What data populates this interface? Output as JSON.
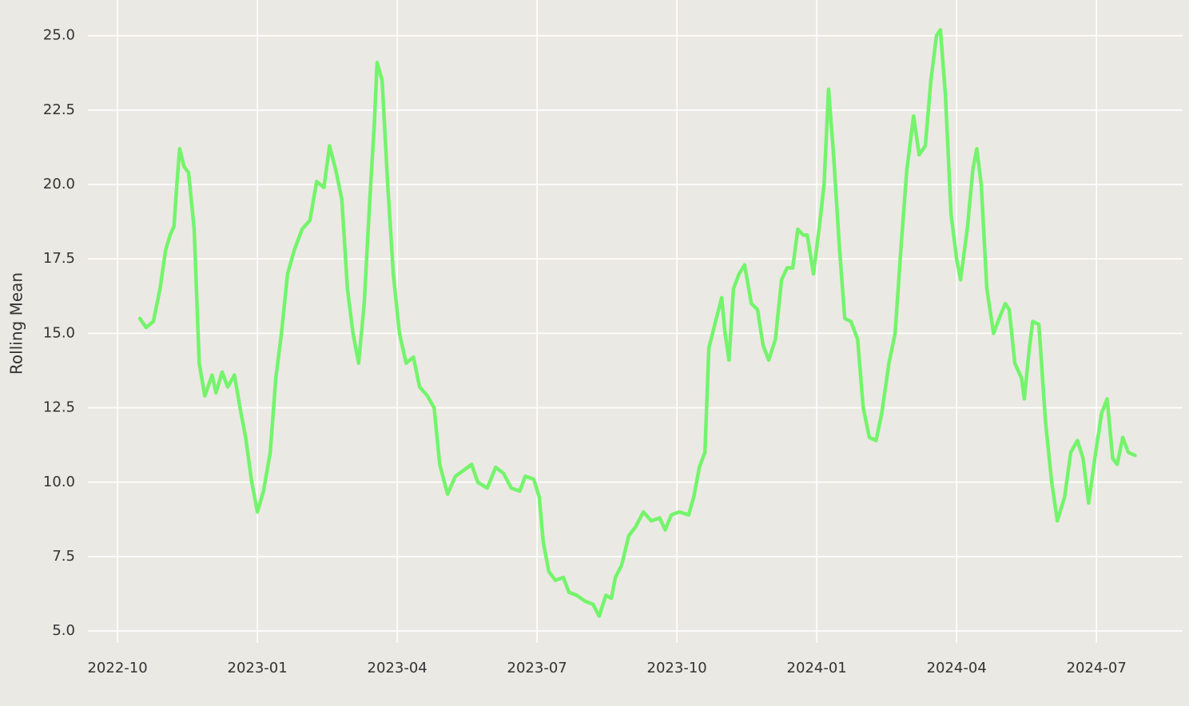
{
  "chart_data": {
    "type": "line",
    "y_label": "Rolling Mean",
    "grid": true,
    "xlim": [
      2022.697,
      2024.654
    ],
    "ylim": [
      4.6,
      26.2
    ],
    "xticks": [
      {
        "value": 2022.75,
        "label": "2022-10"
      },
      {
        "value": 2023,
        "label": "2023-01"
      },
      {
        "value": 2023.25,
        "label": "2023-04"
      },
      {
        "value": 2023.5,
        "label": "2023-07"
      },
      {
        "value": 2023.75,
        "label": "2023-10"
      },
      {
        "value": 2024,
        "label": "2024-01"
      },
      {
        "value": 2024.25,
        "label": "2024-04"
      },
      {
        "value": 2024.5,
        "label": "2024-07"
      }
    ],
    "yticks": [
      {
        "value": 5,
        "label": "5.0"
      },
      7.5,
      {
        "value": 10,
        "label": "10.0"
      },
      12.5,
      {
        "value": 15,
        "label": "15.0"
      },
      17.5,
      {
        "value": 20,
        "label": "20.0"
      },
      22.5,
      {
        "value": 25,
        "label": "25.0"
      }
    ],
    "x": [
      2022.79,
      2022.801,
      2022.814,
      2022.826,
      2022.836,
      2022.844,
      2022.851,
      2022.856,
      2022.861,
      2022.869,
      2022.877,
      2022.887,
      2022.896,
      2022.906,
      2022.919,
      2022.926,
      2022.937,
      2022.947,
      2022.959,
      2022.969,
      2022.979,
      2022.99,
      2023.0,
      2023.011,
      2023.023,
      2023.033,
      2023.043,
      2023.054,
      2023.066,
      2023.08,
      2023.094,
      2023.106,
      2023.119,
      2023.129,
      2023.14,
      2023.151,
      2023.161,
      2023.171,
      2023.181,
      2023.191,
      2023.201,
      2023.209,
      2023.214,
      2023.223,
      2023.233,
      2023.243,
      2023.254,
      2023.266,
      2023.279,
      2023.29,
      2023.304,
      2023.316,
      2023.326,
      2023.34,
      2023.354,
      2023.369,
      2023.383,
      2023.394,
      2023.411,
      2023.426,
      2023.44,
      2023.454,
      2023.469,
      2023.479,
      2023.494,
      2023.504,
      2023.511,
      2023.521,
      2023.533,
      2023.547,
      2023.557,
      2023.571,
      2023.586,
      2023.6,
      2023.611,
      2023.623,
      2023.633,
      2023.64,
      2023.651,
      2023.664,
      2023.676,
      2023.69,
      2023.704,
      2023.719,
      2023.729,
      2023.74,
      2023.754,
      2023.771,
      2023.78,
      2023.79,
      2023.8,
      2023.807,
      2023.819,
      2023.83,
      2023.836,
      2023.843,
      2023.851,
      2023.861,
      2023.871,
      2023.883,
      2023.894,
      2023.904,
      2023.914,
      2023.926,
      2023.937,
      2023.947,
      2023.957,
      2023.966,
      2023.976,
      2023.983,
      2023.994,
      2024.004,
      2024.013,
      2024.021,
      2024.03,
      2024.04,
      2024.05,
      2024.061,
      2024.073,
      2024.083,
      2024.094,
      2024.106,
      2024.116,
      2024.129,
      2024.14,
      2024.151,
      2024.161,
      2024.173,
      2024.183,
      2024.194,
      2024.204,
      2024.214,
      2024.221,
      2024.23,
      2024.24,
      2024.25,
      2024.257,
      2024.269,
      2024.279,
      2024.286,
      2024.294,
      2024.304,
      2024.316,
      2024.326,
      2024.337,
      2024.344,
      2024.354,
      2024.366,
      2024.371,
      2024.38,
      2024.386,
      2024.397,
      2024.409,
      2024.42,
      2024.43,
      2024.443,
      2024.454,
      2024.466,
      2024.476,
      2024.486,
      2024.497,
      2024.509,
      2024.519,
      2024.529,
      2024.537,
      2024.547,
      2024.557,
      2024.569
    ],
    "series": [
      {
        "color": "#74f46c",
        "values": [
          15.5,
          15.2,
          15.4,
          16.5,
          17.8,
          18.3,
          18.6,
          20.0,
          21.2,
          20.6,
          20.4,
          18.5,
          14.0,
          12.9,
          13.6,
          13.0,
          13.7,
          13.2,
          13.6,
          12.5,
          11.5,
          10.0,
          9.0,
          9.7,
          11.0,
          13.5,
          15.0,
          17.0,
          17.8,
          18.5,
          18.8,
          20.1,
          19.9,
          21.3,
          20.5,
          19.5,
          16.5,
          15.0,
          14.0,
          16.0,
          19.5,
          22.0,
          24.1,
          23.5,
          20.0,
          17.0,
          15.0,
          14.0,
          14.2,
          13.2,
          12.9,
          12.5,
          10.6,
          9.6,
          10.2,
          10.4,
          10.6,
          10.0,
          9.8,
          10.5,
          10.3,
          9.8,
          9.7,
          10.2,
          10.1,
          9.5,
          8.0,
          7.0,
          6.7,
          6.8,
          6.3,
          6.2,
          6.0,
          5.9,
          5.5,
          6.2,
          6.1,
          6.8,
          7.2,
          8.2,
          8.5,
          9.0,
          8.7,
          8.8,
          8.4,
          8.9,
          9.0,
          8.9,
          9.5,
          10.5,
          11.0,
          14.5,
          15.4,
          16.2,
          15.0,
          14.1,
          16.5,
          17.0,
          17.3,
          16.0,
          15.8,
          14.6,
          14.1,
          14.8,
          16.8,
          17.2,
          17.2,
          18.5,
          18.3,
          18.3,
          17.0,
          18.5,
          20.0,
          23.2,
          21.0,
          18.0,
          15.5,
          15.4,
          14.8,
          12.5,
          11.5,
          11.4,
          12.3,
          14.0,
          15.0,
          18.0,
          20.5,
          22.3,
          21.0,
          21.3,
          23.5,
          25.0,
          25.2,
          23.0,
          19.0,
          17.5,
          16.8,
          18.5,
          20.5,
          21.2,
          20.0,
          16.5,
          15.0,
          15.5,
          16.0,
          15.8,
          14.0,
          13.5,
          12.8,
          14.5,
          15.4,
          15.3,
          12.0,
          10.0,
          8.7,
          9.5,
          11.0,
          11.4,
          10.8,
          9.3,
          10.8,
          12.3,
          12.8,
          10.8,
          10.6,
          11.5,
          11.0,
          10.9
        ]
      }
    ]
  }
}
